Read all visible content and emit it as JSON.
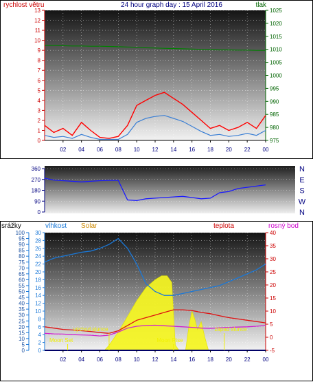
{
  "header": {
    "left_title": "rychlost větru",
    "center_title": "24 hour graph day : 15 April 2016",
    "right_title": "tlak"
  },
  "panel_labels": {
    "rain": "srážky",
    "humidity": "vlhkost",
    "solar": "Solar",
    "temperature": "teplota",
    "dewpoint": "rosný bod"
  },
  "x_ticks": [
    "02",
    "04",
    "06",
    "08",
    "10",
    "12",
    "14",
    "16",
    "18",
    "20",
    "22",
    "00"
  ],
  "colors": {
    "wind_gust": "#ff0000",
    "wind_avg": "#3a7fd5",
    "pressure": "#008000",
    "direction": "#1a1aff",
    "humidity": "#1a78d8",
    "temperature": "#e01010",
    "dewpoint": "#d020d0",
    "solar": "#f5f520",
    "rain": "#0000cc",
    "left_axis": "#cc0000",
    "right_axis": "#006400",
    "compass": "#000080"
  },
  "chart_data": [
    {
      "type": "line",
      "name": "wind",
      "ylim_left": [
        0,
        13
      ],
      "y_ticks_left": [
        0,
        1,
        2,
        3,
        4,
        5,
        6,
        7,
        8,
        9,
        10,
        11,
        12,
        13
      ],
      "ylim_right": [
        975,
        1025
      ],
      "y_ticks_right": [
        975,
        980,
        985,
        990,
        995,
        1000,
        1005,
        1010,
        1015,
        1020,
        1025
      ],
      "x": [
        0,
        1,
        2,
        3,
        4,
        5,
        6,
        7,
        8,
        9,
        10,
        11,
        12,
        13,
        14,
        15,
        16,
        17,
        18,
        19,
        20,
        21,
        22,
        23,
        24
      ],
      "series": [
        {
          "values": [
            1.5,
            0.8,
            1.2,
            0.5,
            1.8,
            1.0,
            0.3,
            0.2,
            0.4,
            1.5,
            3.5,
            4.0,
            4.5,
            4.8,
            4.2,
            3.6,
            2.8,
            2.0,
            1.2,
            1.5,
            1.0,
            1.3,
            1.8,
            1.2,
            2.5
          ]
        },
        {
          "values": [
            0.5,
            0.3,
            0.4,
            0.2,
            0.6,
            0.3,
            0.1,
            0.1,
            0.1,
            0.6,
            1.8,
            2.2,
            2.4,
            2.5,
            2.2,
            1.9,
            1.4,
            0.9,
            0.5,
            0.6,
            0.4,
            0.5,
            0.7,
            0.5,
            1.0
          ]
        },
        {
          "values": [
            1011.5,
            1011.5,
            1011.4,
            1011.3,
            1011.3,
            1011.2,
            1011.2,
            1011.1,
            1011.0,
            1010.9,
            1010.8,
            1010.6,
            1010.5,
            1010.4,
            1010.3,
            1010.2,
            1010.1,
            1010.0,
            1009.9,
            1009.8,
            1009.8,
            1009.7,
            1009.7,
            1009.6,
            1009.6
          ]
        }
      ]
    },
    {
      "type": "line",
      "name": "direction",
      "ylim": [
        0,
        360
      ],
      "y_ticks": [
        0,
        90,
        180,
        270,
        360
      ],
      "right_labels": [
        "N",
        "W",
        "S",
        "E",
        "N"
      ],
      "x": [
        0,
        1,
        2,
        3,
        4,
        5,
        6,
        7,
        8,
        9,
        10,
        11,
        12,
        13,
        14,
        15,
        16,
        17,
        18,
        19,
        20,
        21,
        22,
        23,
        24
      ],
      "series": [
        {
          "values": [
            280,
            265,
            260,
            255,
            250,
            255,
            260,
            262,
            262,
            100,
            95,
            110,
            115,
            120,
            125,
            130,
            120,
            110,
            115,
            160,
            170,
            195,
            205,
            215,
            225
          ]
        }
      ]
    },
    {
      "type": "line",
      "name": "weather",
      "ylim_rain": [
        0,
        100
      ],
      "y_ticks_rain": [
        0,
        5,
        10,
        15,
        20,
        25,
        30,
        35,
        40,
        45,
        50,
        55,
        60,
        65,
        70,
        75,
        80,
        85,
        90,
        95,
        100
      ],
      "ylim_humidity": [
        0,
        30
      ],
      "y_ticks_humidity": [
        0,
        2,
        4,
        6,
        8,
        10,
        12,
        14,
        16,
        18,
        20,
        22,
        24,
        26,
        28,
        30
      ],
      "ylim_temp": [
        -5,
        40
      ],
      "y_ticks_temp": [
        -5,
        0,
        5,
        10,
        15,
        20,
        25,
        30,
        35,
        40
      ],
      "x": [
        0,
        1,
        2,
        3,
        4,
        5,
        6,
        7,
        8,
        9,
        10,
        11,
        12,
        13,
        14,
        15,
        16,
        17,
        18,
        19,
        20,
        21,
        22,
        23,
        24
      ],
      "series": [
        {
          "values": [
            22.5,
            23.5,
            24,
            24.5,
            25,
            25.3,
            26,
            27,
            28.5,
            26,
            22,
            17,
            15,
            14,
            14,
            14.5,
            15,
            15.5,
            16,
            16.5,
            17.5,
            18.5,
            19.5,
            20.5,
            22
          ]
        },
        {
          "values": [
            4,
            3.5,
            3,
            2.8,
            2.5,
            2.2,
            1.8,
            1.5,
            2.5,
            4.5,
            6.5,
            7.5,
            8.5,
            9.5,
            10.5,
            10.5,
            10.2,
            9.5,
            9,
            8.2,
            7.5,
            7,
            6.5,
            6,
            5.5
          ]
        },
        {
          "values": [
            1.5,
            1.3,
            1.2,
            1.0,
            0.9,
            0.8,
            0.5,
            0.8,
            2.0,
            3.5,
            4.2,
            4.5,
            4.6,
            4.4,
            4.2,
            4.0,
            3.8,
            3.5,
            3.4,
            3.6,
            3.8,
            3.9,
            4.0,
            4.2,
            4.5
          ]
        },
        {
          "values": [
            0,
            0,
            0,
            0,
            0,
            0,
            0,
            0,
            0,
            0,
            0,
            0,
            0,
            0,
            0,
            0,
            0,
            0,
            0,
            0,
            0,
            0,
            0,
            0,
            0
          ]
        }
      ],
      "solar_curve_temp_units": [
        [
          6.5,
          -5
        ],
        [
          7,
          -3
        ],
        [
          8,
          2
        ],
        [
          9,
          8
        ],
        [
          10,
          14
        ],
        [
          11,
          19
        ],
        [
          12,
          22
        ],
        [
          12.7,
          23.5
        ],
        [
          13.3,
          23.5
        ],
        [
          13.8,
          21
        ],
        [
          14.2,
          -3
        ],
        [
          14.6,
          -5
        ],
        [
          15.3,
          -5
        ],
        [
          15.7,
          5
        ],
        [
          16,
          10
        ],
        [
          16.3,
          7
        ],
        [
          16.6,
          3
        ],
        [
          17,
          6
        ],
        [
          17.4,
          0
        ],
        [
          17.8,
          -5
        ]
      ],
      "annotations": [
        "Moon Set",
        "východ slunce",
        "Moon Rise",
        "západ slunce"
      ]
    }
  ]
}
